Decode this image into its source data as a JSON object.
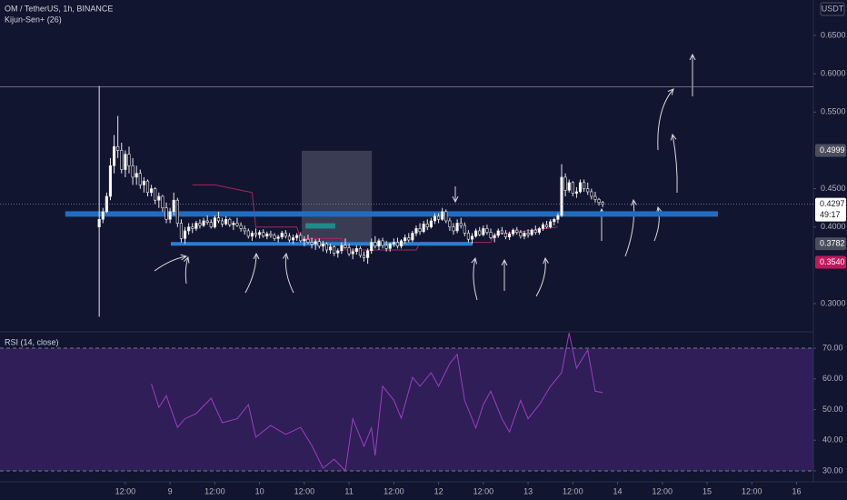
{
  "chart_data": {
    "type": "candlestick",
    "title": "OM / TetherUS, 1h, BINANCE",
    "indicator": "Kijun-Sen+ (26)",
    "currency": "USDT",
    "countdown": "49:17",
    "xlim": [
      -21.6,
      196.5
    ],
    "xticks": [
      {
        "value": 12,
        "label": "12:00"
      },
      {
        "value": 24,
        "label": "9"
      },
      {
        "value": 36,
        "label": "12:00"
      },
      {
        "value": 48,
        "label": "10"
      },
      {
        "value": 60,
        "label": "12:00"
      },
      {
        "value": 72,
        "label": "11"
      },
      {
        "value": 84,
        "label": "12:00"
      },
      {
        "value": 96,
        "label": "12"
      },
      {
        "value": 108,
        "label": "12:00"
      },
      {
        "value": 120,
        "label": "13"
      },
      {
        "value": 132,
        "label": "12:00"
      },
      {
        "value": 144,
        "label": "14"
      },
      {
        "value": 156,
        "label": "12:00"
      },
      {
        "value": 168,
        "label": "15"
      },
      {
        "value": 180,
        "label": "12:00"
      },
      {
        "value": 192,
        "label": "16"
      }
    ],
    "ylim": [
      0.2632,
      0.6963
    ],
    "yticks": [
      {
        "value": 0.65,
        "label": "0.6500"
      },
      {
        "value": 0.6,
        "label": "0.6000"
      },
      {
        "value": 0.55,
        "label": "0.5500"
      },
      {
        "value": 0.45,
        "label": "0.4500"
      },
      {
        "value": 0.4,
        "label": "0.4000"
      },
      {
        "value": 0.3,
        "label": "0.3000"
      }
    ],
    "candles": {
      "up_color": "#ffffff",
      "down_color": "#0b0d1f",
      "x": [
        5,
        6,
        7,
        8,
        9,
        10,
        11,
        12,
        13,
        14,
        15,
        16,
        17,
        18,
        19,
        20,
        21,
        22,
        23,
        24,
        25,
        26,
        27,
        28,
        29,
        30,
        31,
        32,
        33,
        34,
        35,
        36,
        37,
        38,
        39,
        40,
        41,
        42,
        43,
        44,
        45,
        46,
        47,
        48,
        49,
        50,
        51,
        52,
        53,
        54,
        55,
        56,
        57,
        58,
        59,
        60,
        61,
        62,
        63,
        64,
        65,
        66,
        67,
        68,
        69,
        70,
        71,
        72,
        73,
        74,
        75,
        76,
        77,
        78,
        79,
        80,
        81,
        82,
        83,
        84,
        85,
        86,
        87,
        88,
        89,
        90,
        91,
        92,
        93,
        94,
        95,
        96,
        97,
        98,
        99,
        100,
        101,
        102,
        103,
        104,
        105,
        106,
        107,
        108,
        109,
        110,
        111,
        112,
        113,
        114,
        115,
        116,
        117,
        118,
        119,
        120,
        121,
        122,
        123,
        124,
        125,
        126,
        127,
        128,
        129,
        130,
        131,
        132,
        133,
        134,
        135,
        136,
        137,
        138,
        139,
        140
      ],
      "open": [
        0.4,
        0.41,
        0.42,
        0.44,
        0.48,
        0.505,
        0.5,
        0.475,
        0.495,
        0.48,
        0.465,
        0.47,
        0.455,
        0.46,
        0.445,
        0.45,
        0.435,
        0.44,
        0.425,
        0.41,
        0.42,
        0.435,
        0.405,
        0.385,
        0.395,
        0.4,
        0.398,
        0.405,
        0.402,
        0.408,
        0.406,
        0.4,
        0.412,
        0.408,
        0.404,
        0.41,
        0.403,
        0.405,
        0.402,
        0.398,
        0.395,
        0.388,
        0.392,
        0.39,
        0.393,
        0.388,
        0.391,
        0.389,
        0.385,
        0.387,
        0.392,
        0.388,
        0.383,
        0.386,
        0.389,
        0.382,
        0.384,
        0.38,
        0.378,
        0.381,
        0.375,
        0.378,
        0.37,
        0.374,
        0.366,
        0.369,
        0.376,
        0.373,
        0.365,
        0.368,
        0.372,
        0.363,
        0.36,
        0.369,
        0.38,
        0.375,
        0.382,
        0.376,
        0.372,
        0.378,
        0.38,
        0.375,
        0.382,
        0.386,
        0.383,
        0.392,
        0.398,
        0.394,
        0.404,
        0.4,
        0.408,
        0.414,
        0.41,
        0.42,
        0.408,
        0.4,
        0.395,
        0.405,
        0.402,
        0.392,
        0.384,
        0.388,
        0.395,
        0.39,
        0.398,
        0.393,
        0.386,
        0.389,
        0.395,
        0.392,
        0.387,
        0.391,
        0.396,
        0.393,
        0.388,
        0.392,
        0.39,
        0.396,
        0.393,
        0.398,
        0.403,
        0.4,
        0.407,
        0.41,
        0.415,
        0.465,
        0.448,
        0.458,
        0.444,
        0.446,
        0.458,
        0.45,
        0.446,
        0.44,
        0.436,
        0.432
      ],
      "high": [
        0.584,
        0.425,
        0.445,
        0.49,
        0.52,
        0.545,
        0.51,
        0.5,
        0.505,
        0.49,
        0.48,
        0.475,
        0.465,
        0.462,
        0.455,
        0.452,
        0.445,
        0.442,
        0.432,
        0.425,
        0.445,
        0.438,
        0.41,
        0.4,
        0.405,
        0.405,
        0.408,
        0.41,
        0.412,
        0.415,
        0.41,
        0.415,
        0.42,
        0.412,
        0.414,
        0.412,
        0.408,
        0.412,
        0.406,
        0.402,
        0.398,
        0.395,
        0.398,
        0.396,
        0.397,
        0.394,
        0.395,
        0.392,
        0.39,
        0.395,
        0.396,
        0.392,
        0.39,
        0.392,
        0.393,
        0.388,
        0.39,
        0.386,
        0.384,
        0.385,
        0.382,
        0.38,
        0.378,
        0.376,
        0.372,
        0.38,
        0.385,
        0.378,
        0.372,
        0.376,
        0.375,
        0.368,
        0.372,
        0.385,
        0.388,
        0.385,
        0.386,
        0.382,
        0.38,
        0.385,
        0.386,
        0.384,
        0.39,
        0.392,
        0.395,
        0.402,
        0.405,
        0.408,
        0.41,
        0.412,
        0.418,
        0.418,
        0.425,
        0.423,
        0.412,
        0.405,
        0.41,
        0.412,
        0.406,
        0.396,
        0.392,
        0.398,
        0.4,
        0.402,
        0.403,
        0.398,
        0.392,
        0.398,
        0.4,
        0.396,
        0.394,
        0.398,
        0.4,
        0.396,
        0.395,
        0.397,
        0.398,
        0.402,
        0.4,
        0.406,
        0.408,
        0.41,
        0.412,
        0.418,
        0.482,
        0.47,
        0.462,
        0.46,
        0.452,
        0.462,
        0.462,
        0.458,
        0.45,
        0.446,
        0.438,
        0.434
      ],
      "low": [
        0.283,
        0.405,
        0.418,
        0.435,
        0.47,
        0.49,
        0.47,
        0.465,
        0.47,
        0.455,
        0.455,
        0.45,
        0.445,
        0.44,
        0.44,
        0.43,
        0.425,
        0.42,
        0.405,
        0.405,
        0.415,
        0.4,
        0.38,
        0.378,
        0.39,
        0.392,
        0.395,
        0.398,
        0.4,
        0.403,
        0.398,
        0.398,
        0.405,
        0.4,
        0.402,
        0.4,
        0.396,
        0.4,
        0.394,
        0.39,
        0.385,
        0.382,
        0.386,
        0.385,
        0.386,
        0.384,
        0.386,
        0.382,
        0.38,
        0.384,
        0.385,
        0.38,
        0.378,
        0.382,
        0.38,
        0.375,
        0.378,
        0.372,
        0.37,
        0.372,
        0.368,
        0.366,
        0.365,
        0.362,
        0.36,
        0.365,
        0.372,
        0.362,
        0.358,
        0.364,
        0.36,
        0.355,
        0.352,
        0.365,
        0.372,
        0.37,
        0.372,
        0.368,
        0.368,
        0.374,
        0.372,
        0.372,
        0.378,
        0.38,
        0.38,
        0.388,
        0.39,
        0.392,
        0.396,
        0.398,
        0.404,
        0.405,
        0.408,
        0.405,
        0.395,
        0.39,
        0.392,
        0.398,
        0.388,
        0.38,
        0.378,
        0.386,
        0.388,
        0.388,
        0.39,
        0.384,
        0.38,
        0.386,
        0.39,
        0.384,
        0.383,
        0.388,
        0.39,
        0.385,
        0.384,
        0.386,
        0.388,
        0.39,
        0.39,
        0.395,
        0.398,
        0.398,
        0.402,
        0.405,
        0.413,
        0.44,
        0.445,
        0.44,
        0.438,
        0.444,
        0.446,
        0.442,
        0.436,
        0.432,
        0.428,
        0.426
      ],
      "close": [
        0.41,
        0.42,
        0.44,
        0.48,
        0.505,
        0.5,
        0.475,
        0.495,
        0.48,
        0.465,
        0.47,
        0.455,
        0.46,
        0.445,
        0.45,
        0.435,
        0.44,
        0.425,
        0.41,
        0.42,
        0.435,
        0.405,
        0.385,
        0.395,
        0.4,
        0.398,
        0.405,
        0.402,
        0.408,
        0.406,
        0.4,
        0.412,
        0.408,
        0.404,
        0.41,
        0.403,
        0.405,
        0.402,
        0.398,
        0.395,
        0.388,
        0.392,
        0.39,
        0.393,
        0.388,
        0.391,
        0.389,
        0.385,
        0.387,
        0.392,
        0.388,
        0.383,
        0.386,
        0.389,
        0.382,
        0.384,
        0.38,
        0.378,
        0.381,
        0.375,
        0.378,
        0.37,
        0.374,
        0.366,
        0.369,
        0.376,
        0.373,
        0.365,
        0.368,
        0.372,
        0.363,
        0.36,
        0.369,
        0.38,
        0.375,
        0.382,
        0.376,
        0.372,
        0.378,
        0.38,
        0.375,
        0.382,
        0.386,
        0.383,
        0.392,
        0.398,
        0.394,
        0.404,
        0.4,
        0.408,
        0.414,
        0.41,
        0.42,
        0.408,
        0.4,
        0.395,
        0.405,
        0.402,
        0.392,
        0.384,
        0.388,
        0.395,
        0.39,
        0.398,
        0.393,
        0.386,
        0.389,
        0.395,
        0.392,
        0.387,
        0.391,
        0.396,
        0.393,
        0.388,
        0.392,
        0.39,
        0.396,
        0.393,
        0.398,
        0.403,
        0.4,
        0.407,
        0.41,
        0.415,
        0.465,
        0.448,
        0.458,
        0.444,
        0.446,
        0.458,
        0.45,
        0.446,
        0.44,
        0.436,
        0.432,
        0.4297
      ]
    },
    "kijun": {
      "color": "#a3285e",
      "x": [
        30,
        36,
        46,
        47,
        58,
        59,
        70,
        71,
        90,
        91,
        110,
        111,
        128
      ],
      "values": [
        0.455,
        0.455,
        0.445,
        0.4,
        0.4,
        0.385,
        0.385,
        0.37,
        0.37,
        0.38,
        0.38,
        0.39,
        0.4
      ]
    },
    "hline": 0.583,
    "levels": [
      {
        "value": 0.417,
        "x": [
          -4.1,
          170.9
        ],
        "color": "#1f6dc2"
      },
      {
        "value": 0.378,
        "x": [
          24.2,
          105.1
        ],
        "color": "#2a7fd4"
      }
    ],
    "zones": [
      {
        "x": [
          59.3,
          78.1
        ],
        "y": [
          0.378,
          0.4995
        ],
        "color": "rgba(200,200,210,0.22)"
      },
      {
        "x": [
          60.3,
          68.3
        ],
        "y": [
          0.398,
          0.405
        ],
        "color": "#1f8a8a"
      }
    ],
    "price_labels": [
      {
        "value": 0.4999,
        "color": "#4a4e5c"
      },
      {
        "value": 0.4297,
        "color": "#ffffff"
      },
      {
        "value": 0.3782,
        "color": "#4a4e5c"
      },
      {
        "value": 0.354,
        "label": "0.3540",
        "color": "#c2185b"
      }
    ],
    "rsi": {
      "title": "RSI (14, close)",
      "color": "#9c3fbf",
      "band": [
        30,
        70
      ],
      "band_color": "rgba(110,50,170,0.32)",
      "ylim": [
        26.44,
        75.04
      ],
      "yticks": [
        {
          "value": 70,
          "label": "70.00"
        },
        {
          "value": 60,
          "label": "60.00"
        },
        {
          "value": 50,
          "label": "50.00"
        },
        {
          "value": 40,
          "label": "40.00"
        },
        {
          "value": 30,
          "label": "30.00"
        }
      ],
      "x": [
        19,
        21,
        23,
        26,
        28,
        31,
        35,
        38,
        42,
        45,
        47,
        51,
        55,
        59,
        62,
        65,
        68,
        71,
        73,
        76,
        78,
        79,
        81,
        84,
        86,
        89,
        91,
        94,
        96,
        99,
        101,
        103,
        106,
        108,
        110,
        113,
        115,
        118,
        120,
        123,
        126,
        129,
        131,
        133,
        136,
        138,
        140
      ],
      "values": [
        58.4,
        50.7,
        54.5,
        44.2,
        47,
        48.7,
        53.7,
        45.7,
        47,
        51.6,
        41,
        44.8,
        41.9,
        44.2,
        38.3,
        30.9,
        33.8,
        30,
        47,
        38,
        44,
        35,
        57.6,
        53.1,
        47.2,
        60.5,
        57.6,
        62,
        57.6,
        65,
        68,
        53,
        44,
        51.6,
        56,
        47,
        42.7,
        53,
        47,
        51.6,
        57.6,
        62,
        75,
        63.5,
        69.4,
        56,
        55.5
      ]
    }
  }
}
